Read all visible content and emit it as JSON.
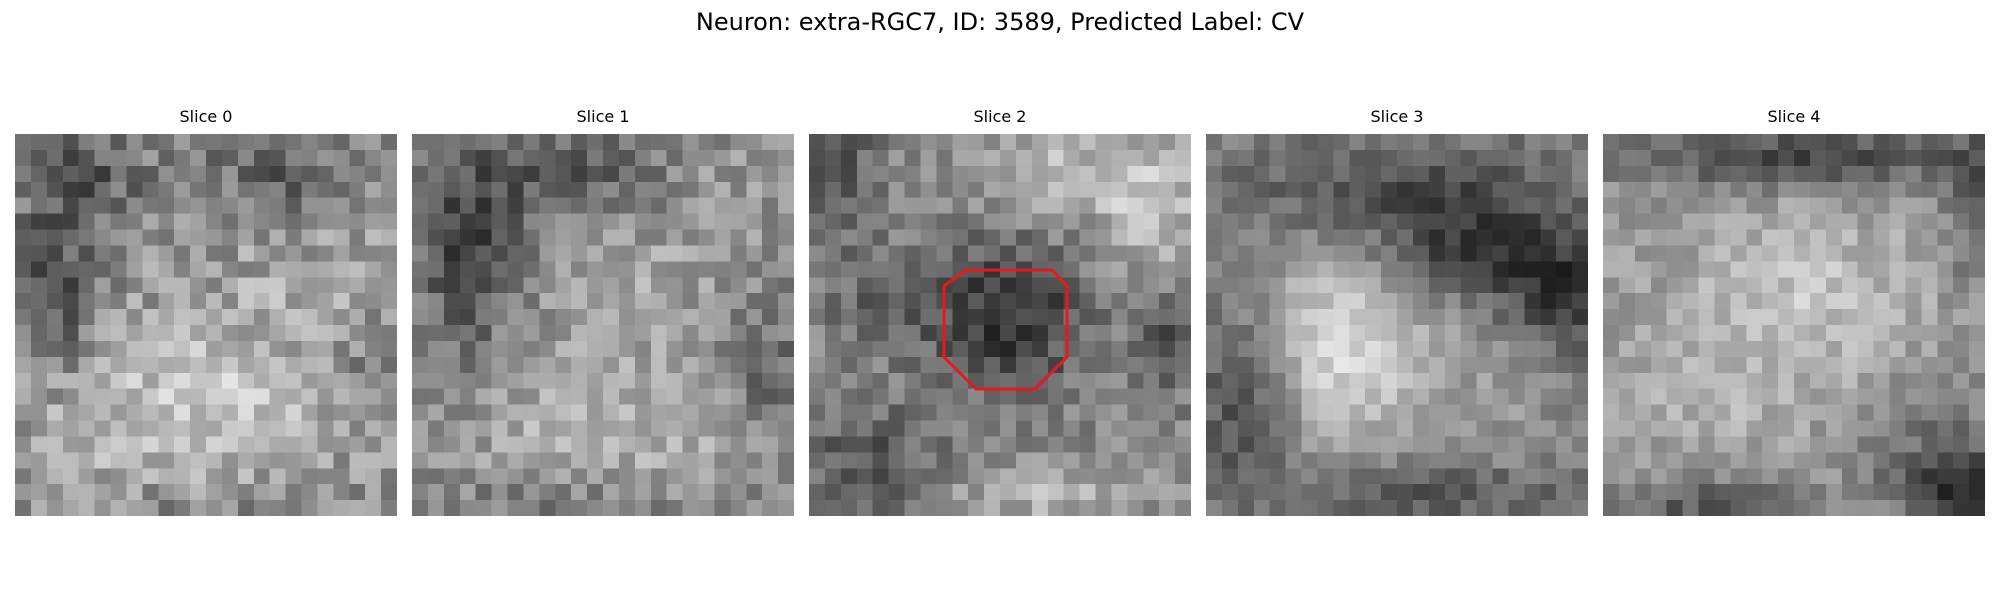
{
  "figure": {
    "title": "Neuron: extra-RGC7, ID: 3589, Predicted Label: CV"
  },
  "panels": [
    {
      "title": "Slice 0"
    },
    {
      "title": "Slice 1"
    },
    {
      "title": "Slice 2"
    },
    {
      "title": "Slice 3"
    },
    {
      "title": "Slice 4"
    }
  ],
  "overlay": {
    "panel": 2,
    "shape": "octagon",
    "color": "#e41a1c"
  },
  "image": {
    "colormap": "grayscale",
    "grid": 24
  }
}
